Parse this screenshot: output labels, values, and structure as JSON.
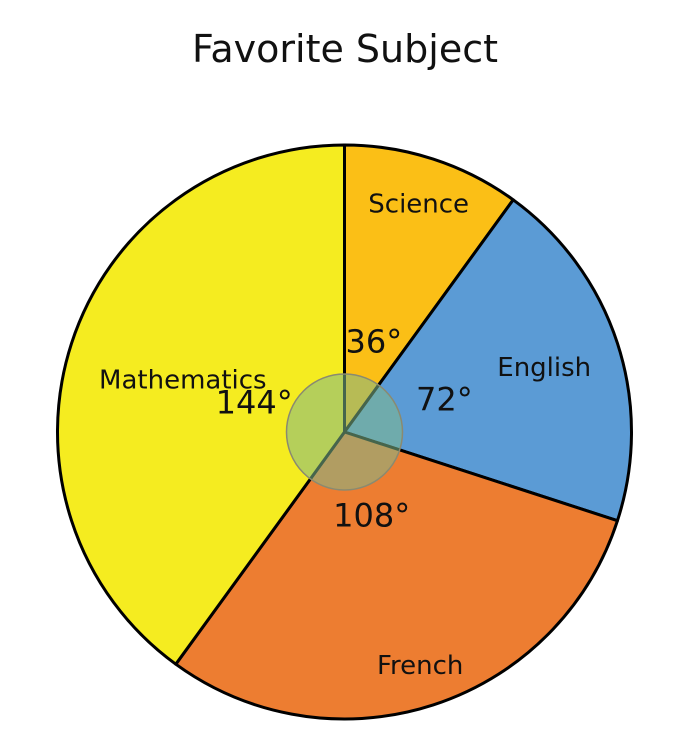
{
  "chart_data": {
    "type": "pie",
    "title": "Favorite Subject",
    "unit": "degrees",
    "slices": [
      {
        "label": "Science",
        "value": 36,
        "value_label": "36°",
        "color": "#FBBF16"
      },
      {
        "label": "English",
        "value": 72,
        "value_label": "72°",
        "color": "#5B9BD5"
      },
      {
        "label": "French",
        "value": 108,
        "value_label": "108°",
        "color": "#ED7D31"
      },
      {
        "label": "Mathematics",
        "value": 144,
        "value_label": "144°",
        "color": "#F5EC20"
      }
    ],
    "start": "top, clockwise",
    "center_marker_color": "#7FB88A"
  }
}
